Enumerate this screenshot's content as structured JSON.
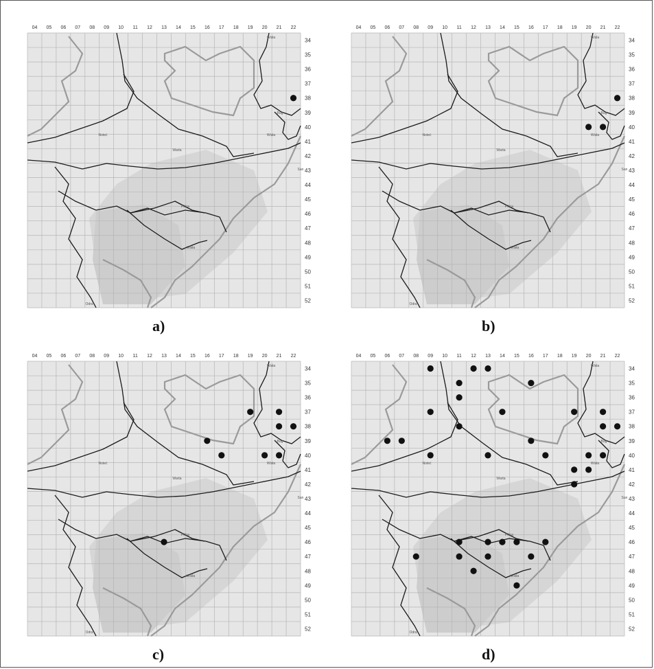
{
  "grid": {
    "columns": [
      "04",
      "05",
      "06",
      "07",
      "08",
      "09",
      "10",
      "11",
      "12",
      "13",
      "14",
      "15",
      "16",
      "17",
      "18",
      "19",
      "20",
      "21",
      "22"
    ],
    "rows": [
      "34",
      "35",
      "36",
      "37",
      "38",
      "39",
      "40",
      "41",
      "42",
      "43",
      "44",
      "45",
      "46",
      "47",
      "48",
      "49",
      "50",
      "51",
      "52"
    ]
  },
  "river_labels": [
    "Wisła",
    "Wisła",
    "Odra",
    "Warta",
    "Noteć",
    "Bug",
    "Pilica",
    "Wisła",
    "San"
  ],
  "panels": [
    {
      "caption": "a)",
      "occurrences": [
        {
          "col": "22",
          "row": "38"
        }
      ]
    },
    {
      "caption": "b)",
      "occurrences": [
        {
          "col": "22",
          "row": "38"
        },
        {
          "col": "20",
          "row": "40"
        },
        {
          "col": "21",
          "row": "40"
        }
      ]
    },
    {
      "caption": "c)",
      "occurrences": [
        {
          "col": "19",
          "row": "37"
        },
        {
          "col": "21",
          "row": "37"
        },
        {
          "col": "21",
          "row": "38"
        },
        {
          "col": "22",
          "row": "38"
        },
        {
          "col": "16",
          "row": "39"
        },
        {
          "col": "17",
          "row": "40"
        },
        {
          "col": "20",
          "row": "40"
        },
        {
          "col": "21",
          "row": "40"
        },
        {
          "col": "13",
          "row": "46"
        }
      ]
    },
    {
      "caption": "d)",
      "occurrences": [
        {
          "col": "09",
          "row": "34"
        },
        {
          "col": "12",
          "row": "34"
        },
        {
          "col": "13",
          "row": "34"
        },
        {
          "col": "11",
          "row": "35"
        },
        {
          "col": "16",
          "row": "35"
        },
        {
          "col": "11",
          "row": "36"
        },
        {
          "col": "09",
          "row": "37"
        },
        {
          "col": "14",
          "row": "37"
        },
        {
          "col": "19",
          "row": "37"
        },
        {
          "col": "21",
          "row": "37"
        },
        {
          "col": "11",
          "row": "38"
        },
        {
          "col": "21",
          "row": "38"
        },
        {
          "col": "22",
          "row": "38"
        },
        {
          "col": "06",
          "row": "39"
        },
        {
          "col": "07",
          "row": "39"
        },
        {
          "col": "16",
          "row": "39"
        },
        {
          "col": "09",
          "row": "40"
        },
        {
          "col": "13",
          "row": "40"
        },
        {
          "col": "17",
          "row": "40"
        },
        {
          "col": "20",
          "row": "40"
        },
        {
          "col": "21",
          "row": "40"
        },
        {
          "col": "19",
          "row": "41"
        },
        {
          "col": "20",
          "row": "41"
        },
        {
          "col": "19",
          "row": "42"
        },
        {
          "col": "11",
          "row": "46"
        },
        {
          "col": "13",
          "row": "46"
        },
        {
          "col": "14",
          "row": "46"
        },
        {
          "col": "15",
          "row": "46"
        },
        {
          "col": "17",
          "row": "46"
        },
        {
          "col": "08",
          "row": "47"
        },
        {
          "col": "11",
          "row": "47"
        },
        {
          "col": "13",
          "row": "47"
        },
        {
          "col": "16",
          "row": "47"
        },
        {
          "col": "12",
          "row": "48"
        },
        {
          "col": "15",
          "row": "49"
        }
      ]
    }
  ]
}
